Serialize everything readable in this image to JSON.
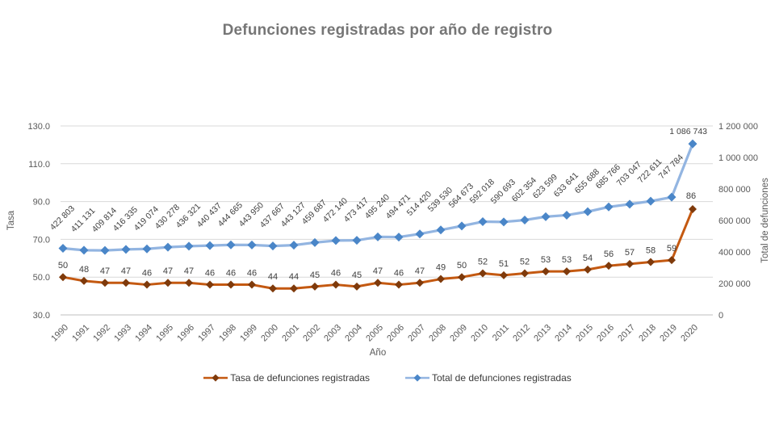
{
  "title": "Defunciones registradas por año de registro",
  "chart_data": {
    "type": "line",
    "x": [
      1990,
      1991,
      1992,
      1993,
      1994,
      1995,
      1996,
      1997,
      1998,
      1999,
      2000,
      2001,
      2002,
      2003,
      2004,
      2005,
      2006,
      2007,
      2008,
      2009,
      2010,
      2011,
      2012,
      2013,
      2014,
      2015,
      2016,
      2017,
      2018,
      2019,
      2020
    ],
    "xlabel": "Año",
    "grid": "horizontal",
    "legend_position": "bottom",
    "left_axis": {
      "label": "Tasa",
      "min": 30,
      "max": 130,
      "ticks": [
        130,
        110,
        90,
        70,
        50,
        30
      ],
      "tick_format": "one-decimal"
    },
    "right_axis": {
      "label": "Total de defunciones",
      "min": 0,
      "max": 1200000,
      "ticks": [
        1200000,
        1000000,
        800000,
        600000,
        400000,
        200000,
        0
      ],
      "tick_format": "space-thousands"
    },
    "series": [
      {
        "name": "Tasa de defunciones registradas",
        "axis": "left",
        "marker": "diamond",
        "line_color": "#c45911",
        "marker_color": "#7f3a0b",
        "values": [
          50,
          48,
          47,
          47,
          46,
          47,
          47,
          46,
          46,
          46,
          44,
          44,
          45,
          46,
          45,
          47,
          46,
          47,
          49,
          50,
          52,
          51,
          52,
          53,
          53,
          54,
          56,
          57,
          58,
          59,
          86
        ]
      },
      {
        "name": "Total de defunciones registradas",
        "axis": "right",
        "marker": "diamond",
        "line_color": "#93b5e1",
        "marker_color": "#4a86c8",
        "values": [
          422803,
          411131,
          409814,
          416335,
          419074,
          430278,
          436321,
          440437,
          444665,
          443950,
          437667,
          443127,
          459687,
          472140,
          473417,
          495240,
          494471,
          514420,
          539530,
          564673,
          592018,
          590693,
          602354,
          623599,
          633641,
          655688,
          685766,
          703047,
          722611,
          747784,
          1086743
        ]
      }
    ],
    "colors": {
      "title_text": "#767676",
      "tick_text": "#595959",
      "data_label_text": "#3f3f3f",
      "gridline": "#d9d9d9",
      "axis_line": "#bfbfbf"
    }
  }
}
